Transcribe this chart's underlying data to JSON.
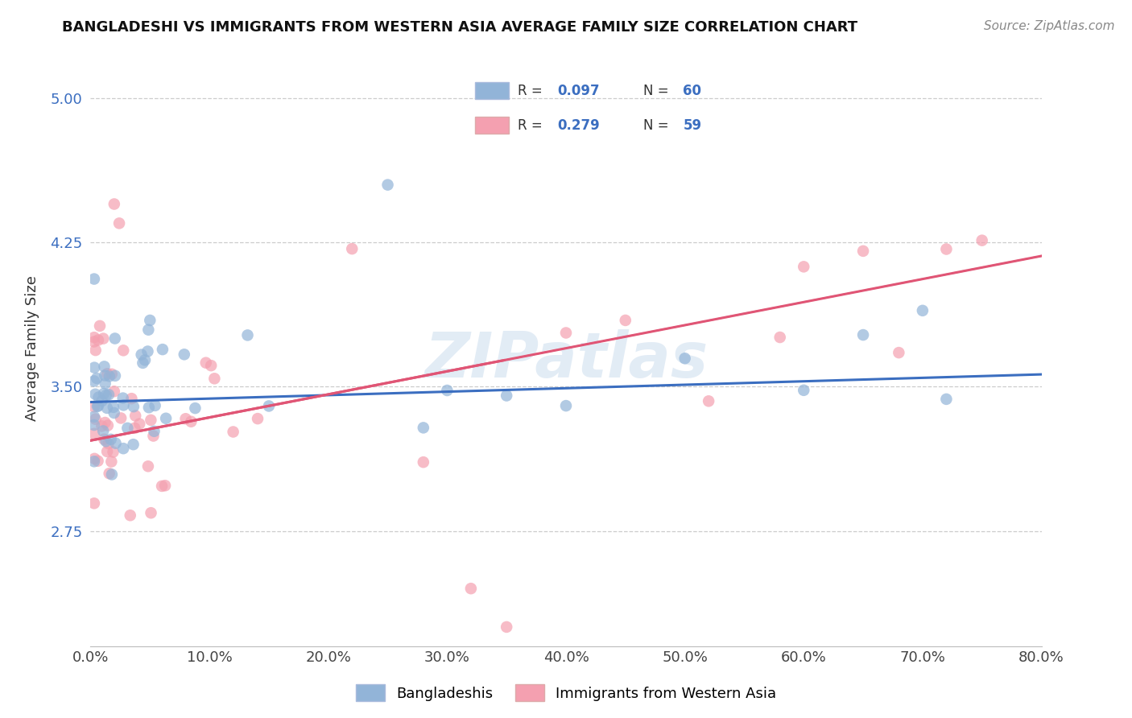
{
  "title": "BANGLADESHI VS IMMIGRANTS FROM WESTERN ASIA AVERAGE FAMILY SIZE CORRELATION CHART",
  "source": "Source: ZipAtlas.com",
  "ylabel": "Average Family Size",
  "xlim": [
    0.0,
    80.0
  ],
  "ylim": [
    2.15,
    5.25
  ],
  "yticks": [
    2.75,
    3.5,
    4.25,
    5.0
  ],
  "xtick_labels": [
    "0.0%",
    "10.0%",
    "20.0%",
    "30.0%",
    "40.0%",
    "50.0%",
    "60.0%",
    "70.0%",
    "80.0%"
  ],
  "xtick_vals": [
    0.0,
    10.0,
    20.0,
    30.0,
    40.0,
    50.0,
    60.0,
    70.0,
    80.0
  ],
  "R_bangladeshi": 0.097,
  "N_bangladeshi": 60,
  "R_western_asia": 0.279,
  "N_western_asia": 59,
  "blue_color": "#92B4D8",
  "pink_color": "#F4A0B0",
  "trend_blue": "#3B6EC0",
  "trend_pink": "#E05575",
  "legend_label_1": "Bangladeshis",
  "legend_label_2": "Immigrants from Western Asia",
  "blue_intercept": 3.42,
  "blue_slope": 0.0018,
  "pink_intercept": 3.22,
  "pink_slope": 0.012,
  "seed": 77
}
